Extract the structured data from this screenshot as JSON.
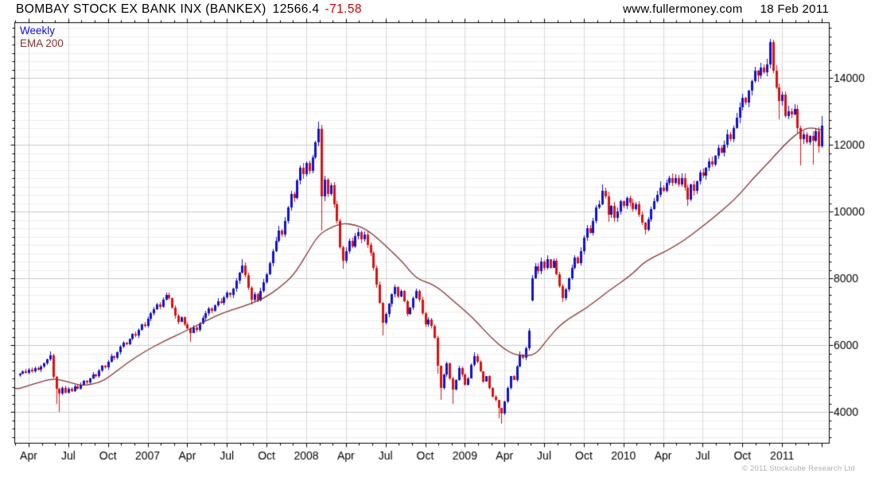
{
  "header": {
    "title": "BOMBAY STOCK EX BANK INX (BANKEX)",
    "last_price": "12566.4",
    "change": "-71.58",
    "site": "www.fullermoney.com",
    "date": "18 Feb 2011"
  },
  "legend": {
    "series": "Weekly",
    "ema": "EMA 200"
  },
  "footer": {
    "copyright": "© 2011 Stockcube Research Ltd"
  },
  "colors": {
    "up": "#1212cc",
    "down": "#dc1010",
    "ema": "#8a3434",
    "grid_major": "#c8c8c8",
    "grid_minor": "#ececec",
    "grid_vert": "#d8d8d8",
    "axis": "#000000",
    "label": "#000000"
  },
  "chart_data": {
    "type": "candlestick",
    "title": "BOMBAY STOCK EX BANK INX (BANKEX) weekly with 200-period EMA",
    "instrument": "BANKEX",
    "timeframe": "Weekly",
    "date_range": "Mar 2006 - 18 Feb 2011",
    "last_close": 12566.4,
    "change": -71.58,
    "legend_position": "top-left",
    "grid": true,
    "y_axis": {
      "side": "right",
      "ticks": [
        4000,
        6000,
        8000,
        10000,
        12000,
        14000
      ],
      "minor_step": 250
    },
    "x_axis": {
      "labels": [
        "Apr",
        "Jul",
        "Oct",
        "2007",
        "Apr",
        "Jul",
        "Oct",
        "2008",
        "Apr",
        "Jul",
        "Oct",
        "2009",
        "Apr",
        "Jul",
        "Oct",
        "2010",
        "Apr",
        "Jul",
        "Oct",
        "2011"
      ]
    },
    "first_open": 5100,
    "closes": [
      5150,
      5220,
      5170,
      5260,
      5210,
      5310,
      5260,
      5360,
      5450,
      5560,
      5690,
      5050,
      4680,
      4550,
      4720,
      4580,
      4700,
      4630,
      4760,
      4690,
      4820,
      4920,
      4870,
      5000,
      5120,
      5060,
      5230,
      5380,
      5330,
      5500,
      5670,
      5610,
      5780,
      5950,
      6080,
      6020,
      6180,
      6340,
      6280,
      6450,
      6620,
      6560,
      6780,
      6950,
      7080,
      7220,
      7150,
      7360,
      7500,
      7410,
      7130,
      6880,
      6700,
      6830,
      6620,
      6500,
      6360,
      6520,
      6450,
      6650,
      6810,
      6960,
      7090,
      7030,
      7190,
      7320,
      7270,
      7430,
      7560,
      7490,
      7680,
      7920,
      8160,
      8390,
      8090,
      7710,
      7360,
      7520,
      7330,
      7620,
      7870,
      8120,
      8460,
      8820,
      9120,
      9420,
      9310,
      9720,
      10120,
      10520,
      10400,
      10920,
      11320,
      11120,
      11460,
      11210,
      11620,
      12080,
      12480,
      10450,
      10950,
      10520,
      10780,
      10210,
      9710,
      8920,
      8530,
      8820,
      9130,
      8960,
      9270,
      9380,
      9160,
      9320,
      9010,
      8760,
      8310,
      7820,
      7270,
      6670,
      6920,
      7230,
      7520,
      7730,
      7460,
      7620,
      7310,
      6930,
      7120,
      7410,
      7630,
      7360,
      6960,
      6620,
      6760,
      6560,
      6210,
      5380,
      4720,
      5110,
      5460,
      5010,
      4660,
      4960,
      5310,
      5110,
      4810,
      5010,
      5410,
      5660,
      5510,
      5210,
      4910,
      5060,
      4710,
      4460,
      4350,
      4110,
      3960,
      4310,
      4710,
      5060,
      4960,
      5360,
      5710,
      5610,
      5910,
      6420,
      8010,
      8360,
      8210,
      8510,
      8310,
      8560,
      8320,
      8520,
      8110,
      7760,
      7410,
      7660,
      7990,
      8310,
      8630,
      8460,
      8810,
      9210,
      9510,
      9360,
      9710,
      10110,
      10210,
      10610,
      10460,
      9910,
      10160,
      9810,
      10010,
      10310,
      10160,
      10410,
      10260,
      10060,
      10210,
      9910,
      9660,
      9460,
      9760,
      10060,
      10310,
      10510,
      10710,
      10610,
      10860,
      11010,
      10860,
      11010,
      10810,
      11010,
      10710,
      10360,
      10810,
      10610,
      10910,
      11160,
      11060,
      11310,
      11510,
      11410,
      11660,
      11910,
      11760,
      12010,
      12310,
      12160,
      12510,
      12810,
      13110,
      13410,
      13260,
      13610,
      13910,
      14210,
      14060,
      14310,
      14160,
      14410,
      15060,
      14210,
      13710,
      13310,
      13510,
      12860,
      13010,
      12910,
      13060,
      12510,
      12160,
      12310,
      12060,
      12260,
      12110,
      12410,
      11960,
      12566
    ],
    "open_overrides": {
      "168": 7330
    },
    "wick_highs": {
      "10": 5820,
      "48": 7570,
      "73": 8570,
      "85": 9560,
      "98": 12700,
      "111": 9500,
      "123": 7800,
      "149": 5780,
      "164": 5800,
      "167": 6490,
      "168": 8090,
      "173": 8690,
      "182": 8700,
      "191": 10820,
      "210": 10910,
      "213": 11060,
      "229": 12010,
      "237": 13530,
      "241": 14340,
      "243": 14460,
      "246": 15160,
      "263": 12850
    },
    "wick_lows": {
      "12": 4230,
      "13": 4010,
      "56": 6100,
      "76": 7210,
      "99": 9420,
      "106": 8290,
      "119": 6280,
      "137": 5150,
      "138": 4360,
      "142": 4250,
      "157": 3810,
      "158": 3650,
      "168": 7300,
      "178": 7290,
      "193": 9700,
      "205": 9300,
      "219": 10160,
      "249": 12760,
      "256": 11390,
      "260": 11410,
      "262": 11760,
      "263": 11900
    },
    "ema_points": [
      [
        0,
        4700
      ],
      [
        6,
        4870
      ],
      [
        11,
        5000
      ],
      [
        16,
        4900
      ],
      [
        20,
        4780
      ],
      [
        24,
        4830
      ],
      [
        28,
        4940
      ],
      [
        35,
        5450
      ],
      [
        42,
        5860
      ],
      [
        48,
        6140
      ],
      [
        54,
        6400
      ],
      [
        60,
        6670
      ],
      [
        66,
        6940
      ],
      [
        74,
        7180
      ],
      [
        80,
        7390
      ],
      [
        85,
        7700
      ],
      [
        90,
        8100
      ],
      [
        94,
        8700
      ],
      [
        98,
        9300
      ],
      [
        102,
        9520
      ],
      [
        106,
        9650
      ],
      [
        110,
        9600
      ],
      [
        114,
        9450
      ],
      [
        118,
        9150
      ],
      [
        122,
        8800
      ],
      [
        126,
        8450
      ],
      [
        130,
        7980
      ],
      [
        136,
        7810
      ],
      [
        142,
        7340
      ],
      [
        147,
        6950
      ],
      [
        150,
        6680
      ],
      [
        154,
        6280
      ],
      [
        158,
        5950
      ],
      [
        161,
        5760
      ],
      [
        164,
        5690
      ],
      [
        169,
        5680
      ],
      [
        173,
        6170
      ],
      [
        178,
        6680
      ],
      [
        186,
        7110
      ],
      [
        193,
        7620
      ],
      [
        201,
        8120
      ],
      [
        205,
        8520
      ],
      [
        215,
        8940
      ],
      [
        226,
        9690
      ],
      [
        235,
        10400
      ],
      [
        240,
        10940
      ],
      [
        246,
        11510
      ],
      [
        252,
        12120
      ],
      [
        257,
        12470
      ],
      [
        260,
        12510
      ],
      [
        263,
        12430
      ]
    ]
  }
}
